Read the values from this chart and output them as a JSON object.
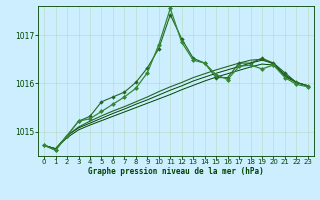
{
  "title": "Graphe pression niveau de la mer (hPa)",
  "bg_color": "#cceeff",
  "grid_color": "#aaddcc",
  "line_color_dark": "#004400",
  "line_color_mid": "#226622",
  "line_color_light": "#338833",
  "xlim": [
    -0.5,
    23.5
  ],
  "ylim": [
    1014.5,
    1017.6
  ],
  "yticks": [
    1015,
    1016,
    1017
  ],
  "xticks": [
    0,
    1,
    2,
    3,
    4,
    5,
    6,
    7,
    8,
    9,
    10,
    11,
    12,
    13,
    14,
    15,
    16,
    17,
    18,
    19,
    20,
    21,
    22,
    23
  ],
  "jagged1": [
    1014.72,
    1014.62,
    1014.92,
    1015.22,
    1015.32,
    1015.62,
    1015.72,
    1015.82,
    1016.02,
    1016.32,
    1016.72,
    1017.42,
    1016.92,
    1016.52,
    1016.42,
    1016.12,
    1016.12,
    1016.42,
    1016.42,
    1016.52,
    1016.42,
    1016.22,
    1016.02,
    1015.95
  ],
  "jagged2": [
    1014.72,
    1014.62,
    1014.92,
    1015.22,
    1015.27,
    1015.42,
    1015.57,
    1015.72,
    1015.9,
    1016.22,
    1016.8,
    1017.55,
    1016.85,
    1016.48,
    1016.42,
    1016.18,
    1016.08,
    1016.35,
    1016.38,
    1016.3,
    1016.38,
    1016.12,
    1015.98,
    1015.93
  ],
  "smooth1": [
    1014.72,
    1014.65,
    1014.92,
    1015.1,
    1015.22,
    1015.33,
    1015.43,
    1015.52,
    1015.62,
    1015.72,
    1015.83,
    1015.93,
    1016.02,
    1016.12,
    1016.2,
    1016.28,
    1016.35,
    1016.42,
    1016.48,
    1016.5,
    1016.4,
    1016.15,
    1016.02,
    1015.95
  ],
  "smooth2": [
    1014.72,
    1014.65,
    1014.92,
    1015.08,
    1015.18,
    1015.28,
    1015.38,
    1015.47,
    1015.57,
    1015.66,
    1015.76,
    1015.86,
    1015.95,
    1016.05,
    1016.13,
    1016.21,
    1016.28,
    1016.35,
    1016.42,
    1016.48,
    1016.42,
    1016.18,
    1016.02,
    1015.95
  ],
  "smooth3": [
    1014.72,
    1014.65,
    1014.88,
    1015.04,
    1015.14,
    1015.23,
    1015.32,
    1015.41,
    1015.5,
    1015.59,
    1015.68,
    1015.77,
    1015.87,
    1015.96,
    1016.05,
    1016.13,
    1016.2,
    1016.27,
    1016.34,
    1016.4,
    1016.38,
    1016.15,
    1016.02,
    1015.95
  ]
}
